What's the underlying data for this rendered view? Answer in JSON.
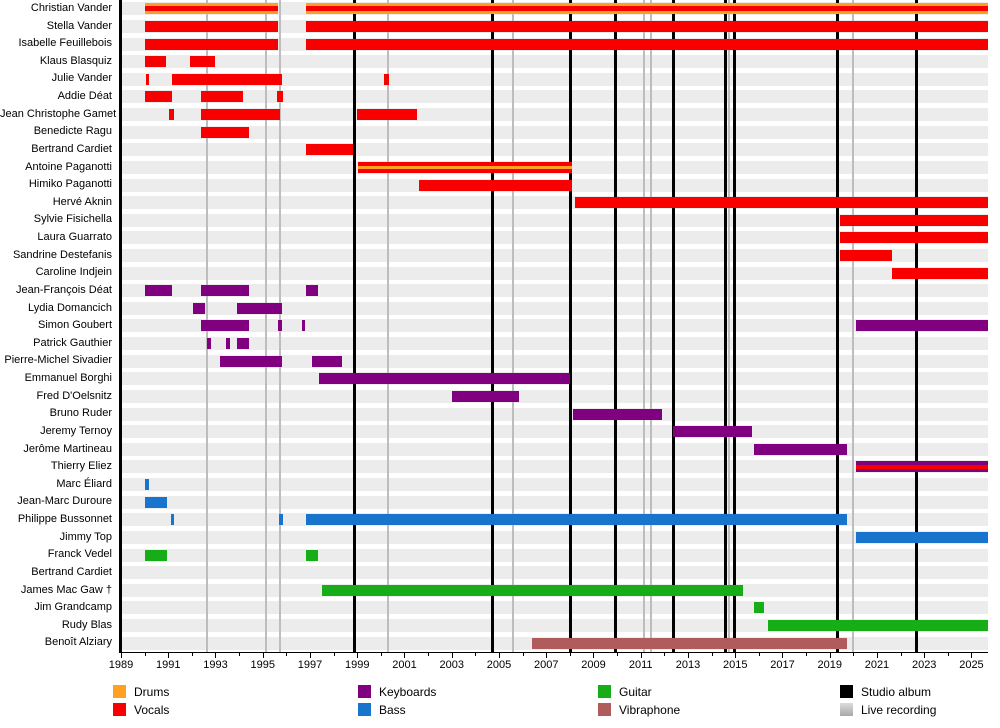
{
  "chart_data": {
    "type": "bar",
    "subtype": "band-membership-timeline",
    "x_axis": {
      "min": 1989,
      "max": 2025.7,
      "major_ticks": [
        1989,
        1991,
        1993,
        1995,
        1997,
        1999,
        2001,
        2003,
        2005,
        2007,
        2009,
        2011,
        2013,
        2015,
        2017,
        2019,
        2021,
        2023,
        2025
      ],
      "minor_tick_step": 1
    },
    "colors": {
      "drums": "#FFA01E",
      "vocals": "#F90000",
      "keyboards": "#800080",
      "bass": "#1874CD",
      "guitar": "#17AD17",
      "vibraphone": "#B05C5C",
      "studio_album": "#000000",
      "live_recording": "#C0C0C0",
      "row_track": "#ECECEC"
    },
    "studio_album_years": [
      1998.85,
      2004.7,
      2008.0,
      2009.9,
      2012.35,
      2014.55,
      2014.95,
      2019.3,
      2022.65
    ],
    "live_recording_years": [
      1992.65,
      1995.15,
      1995.75,
      2000.3,
      2005.6,
      2011.15,
      2011.42,
      2014.75,
      2020.0
    ],
    "members": [
      {
        "name": "Christian Vander",
        "bars": [
          {
            "start": 1990.0,
            "end": 1995.65,
            "role": "drums",
            "stripe": "vocals",
            "stripe_h": 5
          },
          {
            "start": 1996.85,
            "end": 2025.7,
            "role": "drums",
            "stripe": "vocals",
            "stripe_h": 5
          }
        ]
      },
      {
        "name": "Stella Vander",
        "bars": [
          {
            "start": 1990.0,
            "end": 1995.65,
            "role": "vocals"
          },
          {
            "start": 1996.85,
            "end": 2025.7,
            "role": "vocals"
          }
        ]
      },
      {
        "name": "Isabelle Feuillebois",
        "bars": [
          {
            "start": 1990.0,
            "end": 1995.65,
            "role": "vocals"
          },
          {
            "start": 1996.85,
            "end": 2025.7,
            "role": "vocals"
          }
        ]
      },
      {
        "name": "Klaus Blasquiz",
        "bars": [
          {
            "start": 1990.0,
            "end": 1990.9,
            "role": "vocals"
          },
          {
            "start": 1991.9,
            "end": 1993.0,
            "role": "vocals"
          }
        ]
      },
      {
        "name": "Julie Vander",
        "bars": [
          {
            "start": 1990.05,
            "end": 1990.2,
            "role": "vocals"
          },
          {
            "start": 1991.15,
            "end": 1995.8,
            "role": "vocals"
          },
          {
            "start": 2000.15,
            "end": 2000.35,
            "role": "vocals"
          }
        ]
      },
      {
        "name": "Addie Déat",
        "bars": [
          {
            "start": 1990.0,
            "end": 1991.15,
            "role": "vocals"
          },
          {
            "start": 1992.4,
            "end": 1994.15,
            "role": "vocals"
          },
          {
            "start": 1995.6,
            "end": 1995.85,
            "role": "vocals"
          }
        ]
      },
      {
        "name": "Jean Christophe Gamet",
        "bars": [
          {
            "start": 1991.05,
            "end": 1991.25,
            "role": "vocals"
          },
          {
            "start": 1992.4,
            "end": 1995.75,
            "role": "vocals"
          },
          {
            "start": 1999.0,
            "end": 2001.55,
            "role": "vocals"
          }
        ]
      },
      {
        "name": "Benedicte Ragu",
        "bars": [
          {
            "start": 1992.4,
            "end": 1994.4,
            "role": "vocals"
          }
        ]
      },
      {
        "name": "Bertrand Cardiet",
        "bars": [
          {
            "start": 1996.85,
            "end": 1998.8,
            "role": "vocals"
          }
        ]
      },
      {
        "name": "Antoine Paganotti",
        "bars": [
          {
            "start": 1999.05,
            "end": 2008.1,
            "role": "vocals",
            "stripe": "drums",
            "stripe_h": 3
          }
        ]
      },
      {
        "name": "Himiko Paganotti",
        "bars": [
          {
            "start": 2001.6,
            "end": 2008.1,
            "role": "vocals"
          }
        ]
      },
      {
        "name": "Hervé Aknin",
        "bars": [
          {
            "start": 2008.2,
            "end": 2025.7,
            "role": "vocals"
          }
        ]
      },
      {
        "name": "Sylvie Fisichella",
        "bars": [
          {
            "start": 2019.45,
            "end": 2025.7,
            "role": "vocals"
          }
        ]
      },
      {
        "name": "Laura Guarrato",
        "bars": [
          {
            "start": 2019.45,
            "end": 2025.7,
            "role": "vocals"
          }
        ]
      },
      {
        "name": "Sandrine Destefanis",
        "bars": [
          {
            "start": 2019.45,
            "end": 2021.65,
            "role": "vocals"
          }
        ]
      },
      {
        "name": "Caroline Indjein",
        "bars": [
          {
            "start": 2021.65,
            "end": 2025.7,
            "role": "vocals"
          }
        ]
      },
      {
        "name": "Jean-François Déat",
        "bars": [
          {
            "start": 1990.0,
            "end": 1991.15,
            "role": "keyboards"
          },
          {
            "start": 1992.4,
            "end": 1994.4,
            "role": "keyboards"
          },
          {
            "start": 1996.85,
            "end": 1997.35,
            "role": "keyboards"
          }
        ]
      },
      {
        "name": "Lydia Domancich",
        "bars": [
          {
            "start": 1992.05,
            "end": 1992.55,
            "role": "keyboards"
          },
          {
            "start": 1993.9,
            "end": 1995.8,
            "role": "keyboards"
          }
        ]
      },
      {
        "name": "Simon Goubert",
        "bars": [
          {
            "start": 1992.4,
            "end": 1994.4,
            "role": "keyboards"
          },
          {
            "start": 1995.65,
            "end": 1995.8,
            "role": "keyboards"
          },
          {
            "start": 1996.65,
            "end": 1996.8,
            "role": "keyboards"
          },
          {
            "start": 2020.1,
            "end": 2025.7,
            "role": "keyboards"
          }
        ]
      },
      {
        "name": "Patrick Gauthier",
        "bars": [
          {
            "start": 1992.65,
            "end": 1992.8,
            "role": "keyboards"
          },
          {
            "start": 1993.45,
            "end": 1993.6,
            "role": "keyboards"
          },
          {
            "start": 1993.9,
            "end": 1994.4,
            "role": "keyboards"
          }
        ]
      },
      {
        "name": "Pierre-Michel Sivadier",
        "bars": [
          {
            "start": 1993.2,
            "end": 1995.8,
            "role": "keyboards"
          },
          {
            "start": 1997.1,
            "end": 1998.35,
            "role": "keyboards"
          }
        ]
      },
      {
        "name": "Emmanuel Borghi",
        "bars": [
          {
            "start": 1997.4,
            "end": 2008.0,
            "role": "keyboards"
          }
        ]
      },
      {
        "name": "Fred D'Oelsnitz",
        "bars": [
          {
            "start": 2003.0,
            "end": 2005.85,
            "role": "keyboards"
          }
        ]
      },
      {
        "name": "Bruno Ruder",
        "bars": [
          {
            "start": 2008.15,
            "end": 2011.9,
            "role": "keyboards"
          }
        ]
      },
      {
        "name": "Jeremy Ternoy",
        "bars": [
          {
            "start": 2012.35,
            "end": 2015.7,
            "role": "keyboards"
          }
        ]
      },
      {
        "name": "Jerôme Martineau",
        "bars": [
          {
            "start": 2015.8,
            "end": 2019.75,
            "role": "keyboards"
          }
        ]
      },
      {
        "name": "Thierry Eliez",
        "bars": [
          {
            "start": 2020.1,
            "end": 2025.7,
            "role": "keyboards",
            "stripe": "vocals",
            "stripe_h": 3.5
          }
        ]
      },
      {
        "name": "Marc Éliard",
        "bars": [
          {
            "start": 1990.0,
            "end": 1990.2,
            "role": "bass"
          }
        ]
      },
      {
        "name": "Jean-Marc Duroure",
        "bars": [
          {
            "start": 1990.0,
            "end": 1990.95,
            "role": "bass"
          }
        ]
      },
      {
        "name": "Philippe Bussonnet",
        "bars": [
          {
            "start": 1991.1,
            "end": 1991.25,
            "role": "bass"
          },
          {
            "start": 1995.7,
            "end": 1995.85,
            "role": "bass"
          },
          {
            "start": 1996.85,
            "end": 2019.75,
            "role": "bass"
          }
        ]
      },
      {
        "name": "Jimmy Top",
        "bars": [
          {
            "start": 2020.1,
            "end": 2025.7,
            "role": "bass"
          }
        ]
      },
      {
        "name": "Franck Vedel",
        "bars": [
          {
            "start": 1990.0,
            "end": 1990.95,
            "role": "guitar"
          },
          {
            "start": 1996.85,
            "end": 1997.35,
            "role": "guitar"
          }
        ]
      },
      {
        "name": "Bertrand Cardiet",
        "bars": []
      },
      {
        "name": "James Mac Gaw †",
        "bars": [
          {
            "start": 1997.5,
            "end": 2015.35,
            "role": "guitar"
          }
        ]
      },
      {
        "name": "Jim Grandcamp",
        "bars": [
          {
            "start": 2015.8,
            "end": 2016.2,
            "role": "guitar"
          }
        ]
      },
      {
        "name": "Rudy Blas",
        "bars": [
          {
            "start": 2016.4,
            "end": 2025.7,
            "role": "guitar"
          }
        ]
      },
      {
        "name": "Benoît Alziary",
        "bars": [
          {
            "start": 2006.4,
            "end": 2019.75,
            "role": "vibraphone"
          }
        ]
      }
    ]
  },
  "legend": {
    "columns": [
      [
        {
          "label": "Drums",
          "role": "drums"
        },
        {
          "label": "Vocals",
          "role": "vocals"
        }
      ],
      [
        {
          "label": "Keyboards",
          "role": "keyboards"
        },
        {
          "label": "Bass",
          "role": "bass"
        }
      ],
      [
        {
          "label": "Guitar",
          "role": "guitar"
        },
        {
          "label": "Vibraphone",
          "role": "vibraphone"
        }
      ],
      [
        {
          "label": "Studio album",
          "role": "studio_album"
        },
        {
          "label": "Live recording",
          "role": "live_recording"
        }
      ]
    ]
  }
}
